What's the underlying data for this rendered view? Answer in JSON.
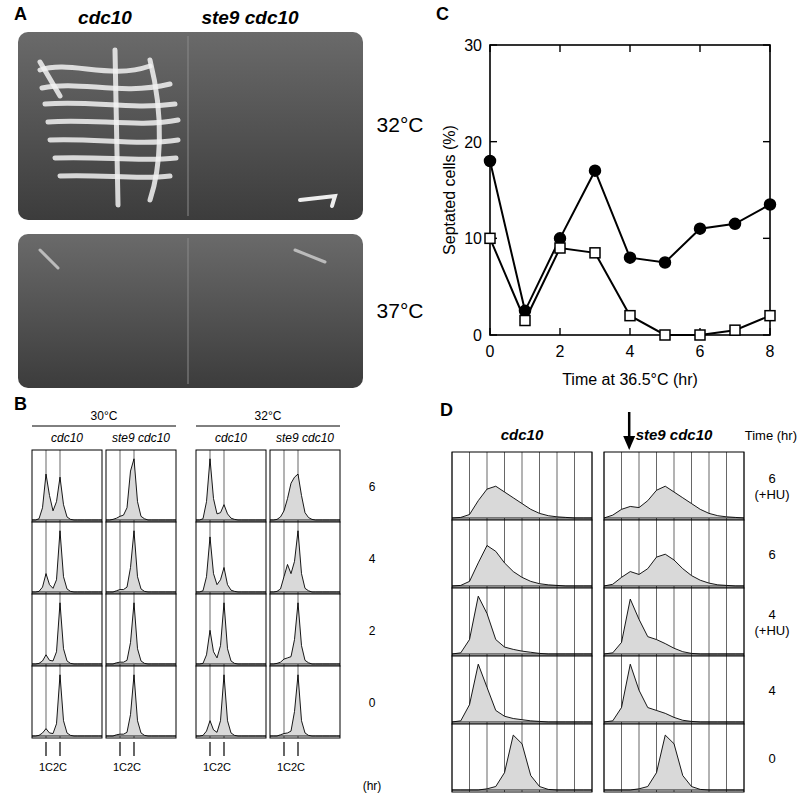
{
  "panels": {
    "A": {
      "label": "A",
      "strains": [
        "cdc10",
        "ste9 cdc10"
      ],
      "temperatures": [
        "32°C",
        "37°C"
      ]
    },
    "B": {
      "label": "B",
      "groups": [
        "30°C",
        "32°C"
      ],
      "times": [
        "6",
        "4",
        "2",
        "0"
      ],
      "time_unit": "(hr)"
    },
    "C": {
      "label": "C"
    },
    "D": {
      "label": "D",
      "time_header": "Time (hr)",
      "times": [
        [
          "6",
          "(+HU)"
        ],
        [
          "6"
        ],
        [
          "4",
          "(+HU)"
        ],
        [
          "4"
        ],
        [
          "0"
        ]
      ]
    }
  },
  "chart_data": [
    {
      "type": "line",
      "x": [
        0,
        1,
        2,
        3,
        4,
        5,
        6,
        7,
        8
      ],
      "xlim": [
        0,
        8
      ],
      "xticks": [
        0,
        2,
        4,
        6,
        8
      ],
      "ylim": [
        0,
        30
      ],
      "yticks": [
        0,
        10,
        20,
        30
      ],
      "x_label": "Time at 36.5°C (hr)",
      "y_label": "Septated cells (%)",
      "series": [
        {
          "color": "#000000",
          "marker": "filled-circle",
          "line_style": "solid",
          "values": [
            18,
            2.5,
            10,
            17,
            8,
            7.5,
            11,
            11.5,
            13.5
          ]
        },
        {
          "color": "#000000",
          "marker": "open-square",
          "line_style": "solid",
          "values": [
            10,
            1.5,
            9,
            8.5,
            2,
            0,
            0,
            0.5,
            2
          ]
        }
      ]
    },
    {
      "type": "area",
      "title": "cdc10",
      "x": [
        0,
        0.5,
        1,
        1.5,
        2,
        2.5,
        3,
        3.5,
        4,
        4.5,
        5,
        5.5,
        6,
        6.5,
        7,
        7.5,
        8,
        8.5,
        9,
        9.5,
        10
      ],
      "xlim": [
        0,
        10
      ],
      "xticks": [
        {
          "value": 2,
          "label": "1C"
        },
        {
          "value": 4,
          "label": "2C"
        }
      ],
      "ylim": [
        0,
        100
      ],
      "grid": true,
      "color": "#d9d9d9",
      "series": [
        {
          "values": [
            0,
            0,
            2,
            20,
            75,
            40,
            15,
            30,
            70,
            25,
            5,
            1,
            0,
            0,
            0,
            0,
            0,
            0,
            0,
            0,
            0
          ]
        },
        {
          "values": [
            0,
            0,
            1,
            8,
            30,
            12,
            6,
            20,
            100,
            25,
            5,
            1,
            0,
            0,
            0,
            0,
            0,
            0,
            0,
            0,
            0
          ]
        },
        {
          "values": [
            0,
            0,
            1,
            5,
            15,
            6,
            5,
            20,
            100,
            25,
            5,
            1,
            0,
            0,
            0,
            0,
            0,
            0,
            0,
            0,
            0
          ]
        },
        {
          "values": [
            0,
            0,
            1,
            5,
            12,
            5,
            4,
            20,
            100,
            25,
            5,
            1,
            0,
            0,
            0,
            0,
            0,
            0,
            0,
            0,
            0
          ]
        }
      ]
    },
    {
      "type": "area",
      "title": "ste9 cdc10",
      "x": [
        0,
        0.5,
        1,
        1.5,
        2,
        2.5,
        3,
        3.5,
        4,
        4.5,
        5,
        5.5,
        6,
        6.5,
        7,
        7.5,
        8,
        8.5,
        9,
        9.5,
        10
      ],
      "xlim": [
        0,
        10
      ],
      "xticks": [
        {
          "value": 2,
          "label": "1C"
        },
        {
          "value": 4,
          "label": "2C"
        }
      ],
      "ylim": [
        0,
        100
      ],
      "grid": true,
      "color": "#d9d9d9",
      "series": [
        {
          "values": [
            0,
            0,
            1,
            3,
            6,
            8,
            20,
            80,
            100,
            30,
            6,
            2,
            0,
            0,
            0,
            0,
            0,
            0,
            0,
            0,
            0
          ]
        },
        {
          "values": [
            0,
            0,
            0,
            2,
            4,
            4,
            8,
            40,
            100,
            25,
            5,
            1,
            0,
            0,
            0,
            0,
            0,
            0,
            0,
            0,
            0
          ]
        },
        {
          "values": [
            0,
            0,
            0,
            2,
            3,
            3,
            6,
            35,
            100,
            25,
            5,
            1,
            0,
            0,
            0,
            0,
            0,
            0,
            0,
            0,
            0
          ]
        },
        {
          "values": [
            0,
            0,
            0,
            2,
            3,
            3,
            6,
            35,
            100,
            25,
            5,
            1,
            0,
            0,
            0,
            0,
            0,
            0,
            0,
            0,
            0
          ]
        }
      ]
    },
    {
      "type": "area",
      "title": "cdc10",
      "x": [
        0,
        0.5,
        1,
        1.5,
        2,
        2.5,
        3,
        3.5,
        4,
        4.5,
        5,
        5.5,
        6,
        6.5,
        7,
        7.5,
        8,
        8.5,
        9,
        9.5,
        10
      ],
      "xlim": [
        0,
        10
      ],
      "xticks": [
        {
          "value": 2,
          "label": "1C"
        },
        {
          "value": 4,
          "label": "2C"
        }
      ],
      "ylim": [
        0,
        100
      ],
      "grid": true,
      "color": "#d9d9d9",
      "series": [
        {
          "values": [
            0,
            0,
            2,
            30,
            100,
            35,
            10,
            12,
            25,
            10,
            3,
            1,
            0,
            0,
            0,
            0,
            0,
            0,
            0,
            0,
            0
          ]
        },
        {
          "values": [
            0,
            0,
            2,
            25,
            90,
            30,
            12,
            20,
            40,
            12,
            3,
            1,
            0,
            0,
            0,
            0,
            0,
            0,
            0,
            0,
            0
          ]
        },
        {
          "values": [
            0,
            0,
            1,
            15,
            55,
            20,
            10,
            30,
            100,
            25,
            5,
            1,
            0,
            0,
            0,
            0,
            0,
            0,
            0,
            0,
            0
          ]
        },
        {
          "values": [
            0,
            0,
            1,
            8,
            25,
            10,
            6,
            25,
            100,
            25,
            5,
            1,
            0,
            0,
            0,
            0,
            0,
            0,
            0,
            0,
            0
          ]
        }
      ]
    },
    {
      "type": "area",
      "title": "ste9 cdc10",
      "x": [
        0,
        0.5,
        1,
        1.5,
        2,
        2.5,
        3,
        3.5,
        4,
        4.5,
        5,
        5.5,
        6,
        6.5,
        7,
        7.5,
        8,
        8.5,
        9,
        9.5,
        10
      ],
      "xlim": [
        0,
        10
      ],
      "xticks": [
        {
          "value": 2,
          "label": "1C"
        },
        {
          "value": 4,
          "label": "2C"
        }
      ],
      "ylim": [
        0,
        100
      ],
      "grid": true,
      "color": "#d9d9d9",
      "series": [
        {
          "values": [
            0,
            0,
            1,
            5,
            15,
            35,
            60,
            70,
            75,
            40,
            12,
            4,
            1,
            0,
            0,
            0,
            0,
            0,
            0,
            0,
            0
          ]
        },
        {
          "values": [
            0,
            0,
            1,
            5,
            25,
            45,
            30,
            50,
            100,
            30,
            6,
            2,
            0,
            0,
            0,
            0,
            0,
            0,
            0,
            0,
            0
          ]
        },
        {
          "values": [
            0,
            0,
            1,
            3,
            8,
            10,
            12,
            40,
            100,
            30,
            6,
            2,
            0,
            0,
            0,
            0,
            0,
            0,
            0,
            0,
            0
          ]
        },
        {
          "values": [
            0,
            0,
            0,
            2,
            4,
            5,
            8,
            40,
            100,
            25,
            5,
            1,
            0,
            0,
            0,
            0,
            0,
            0,
            0,
            0,
            0
          ]
        }
      ]
    },
    {
      "type": "area",
      "title": "cdc10",
      "x": [
        0,
        0.5,
        1,
        1.5,
        2,
        2.5,
        3,
        3.5,
        4,
        4.5,
        5,
        5.5,
        6,
        6.5,
        7,
        7.5,
        8
      ],
      "xlim": [
        0,
        8
      ],
      "xticks": [
        0,
        1,
        2,
        3,
        4,
        5,
        6,
        7,
        8
      ],
      "tick_labels": false,
      "ylim": [
        0,
        100
      ],
      "grid": true,
      "color": "#d9d9d9",
      "series": [
        {
          "values": [
            0,
            1,
            6,
            30,
            50,
            55,
            45,
            35,
            25,
            15,
            8,
            4,
            2,
            1,
            0,
            0,
            0
          ]
        },
        {
          "values": [
            0,
            1,
            8,
            40,
            70,
            60,
            40,
            25,
            15,
            8,
            4,
            2,
            1,
            0,
            0,
            0,
            0
          ]
        },
        {
          "values": [
            0,
            2,
            25,
            100,
            70,
            25,
            12,
            8,
            5,
            3,
            1,
            0,
            0,
            0,
            0,
            0,
            0
          ]
        },
        {
          "values": [
            0,
            2,
            30,
            100,
            60,
            20,
            10,
            6,
            4,
            2,
            1,
            0,
            0,
            0,
            0,
            0,
            0
          ]
        },
        {
          "values": [
            0,
            0,
            0,
            0,
            2,
            6,
            30,
            95,
            80,
            25,
            6,
            1,
            0,
            0,
            0,
            0,
            0
          ]
        }
      ]
    },
    {
      "type": "area",
      "title": "ste9 cdc10",
      "x": [
        0,
        0.5,
        1,
        1.5,
        2,
        2.5,
        3,
        3.5,
        4,
        4.5,
        5,
        5.5,
        6,
        6.5,
        7,
        7.5,
        8
      ],
      "xlim": [
        0,
        8
      ],
      "xticks": [
        0,
        1,
        2,
        3,
        4,
        5,
        6,
        7,
        8
      ],
      "tick_labels": false,
      "ylim": [
        0,
        100
      ],
      "grid": true,
      "color": "#d9d9d9",
      "series": [
        {
          "values": [
            0,
            5,
            15,
            20,
            18,
            30,
            48,
            55,
            45,
            35,
            25,
            15,
            8,
            4,
            2,
            1,
            0
          ]
        },
        {
          "values": [
            0,
            3,
            15,
            25,
            20,
            30,
            50,
            55,
            45,
            30,
            18,
            10,
            5,
            2,
            1,
            0,
            0
          ]
        },
        {
          "values": [
            0,
            2,
            20,
            95,
            60,
            30,
            25,
            18,
            10,
            4,
            1,
            0,
            0,
            0,
            0,
            0,
            0
          ]
        },
        {
          "values": [
            0,
            2,
            25,
            100,
            55,
            25,
            20,
            15,
            8,
            3,
            1,
            0,
            0,
            0,
            0,
            0,
            0
          ]
        },
        {
          "values": [
            0,
            0,
            0,
            0,
            2,
            6,
            30,
            95,
            80,
            25,
            6,
            1,
            0,
            0,
            0,
            0,
            0
          ]
        }
      ]
    }
  ]
}
